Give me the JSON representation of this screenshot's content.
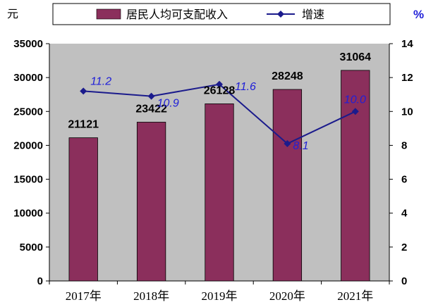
{
  "chart_data": {
    "type": "bar+line",
    "categories": [
      "2017年",
      "2018年",
      "2019年",
      "2020年",
      "2021年"
    ],
    "series": [
      {
        "name": "居民人均可支配收入",
        "type": "bar",
        "axis": "left",
        "values": [
          21121,
          23422,
          26128,
          28248,
          31064
        ],
        "color": "#8b2f5c"
      },
      {
        "name": "增速",
        "type": "line",
        "axis": "right",
        "values": [
          11.2,
          10.9,
          11.6,
          8.1,
          10.0
        ],
        "labels": [
          "11.2",
          "10.9",
          "11.6",
          "8.1",
          "10.0"
        ],
        "color": "#1b1b8c"
      }
    ],
    "y_left": {
      "unit": "元",
      "ylim": [
        0,
        35000
      ],
      "ticks": [
        "0",
        "5000",
        "10000",
        "15000",
        "20000",
        "25000",
        "30000",
        "35000"
      ]
    },
    "y_right": {
      "unit": "%",
      "ylim": [
        0,
        14
      ],
      "ticks": [
        "0",
        "2",
        "4",
        "6",
        "8",
        "10",
        "12",
        "14"
      ]
    },
    "plot_background": "#c0c0c0",
    "label_color": "#1f1fd8",
    "grid": false,
    "legend_position": "top"
  }
}
